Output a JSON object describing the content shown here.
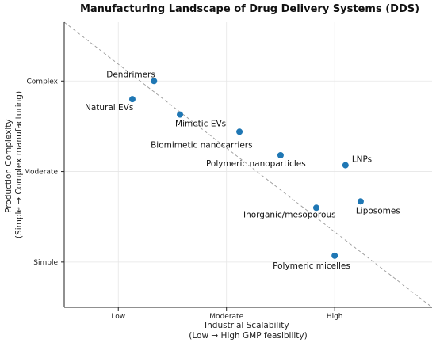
{
  "chart_data": {
    "type": "scatter",
    "title": "Manufacturing Landscape of Drug Delivery Systems (DDS)",
    "xlabel": [
      "Industrial Scalability",
      "(Low → High GMP feasibility)"
    ],
    "ylabel": [
      "Production Complexity",
      "(Simple → Complex manufacturing)"
    ],
    "xlim": [
      0.5,
      3.9
    ],
    "ylim": [
      0.5,
      3.65
    ],
    "x_ticks": [
      {
        "value": 1,
        "label": "Low"
      },
      {
        "value": 2,
        "label": "Moderate"
      },
      {
        "value": 3,
        "label": "High"
      }
    ],
    "y_ticks": [
      {
        "value": 1,
        "label": "Simple"
      },
      {
        "value": 2,
        "label": "Moderate"
      },
      {
        "value": 3,
        "label": "Complex"
      }
    ],
    "grid": true,
    "reference_line": {
      "style": "dashed",
      "from": [
        0.5,
        3.65
      ],
      "to": [
        3.9,
        0.5
      ]
    },
    "point_color": "#1f77b4",
    "points": [
      {
        "name": "Dendrimers",
        "x": 1.33,
        "y": 3.0,
        "label_dx": -60,
        "label_dy": -5
      },
      {
        "name": "Natural EVs",
        "x": 1.13,
        "y": 2.8,
        "label_dx": -60,
        "label_dy": 14
      },
      {
        "name": "Mimetic EVs",
        "x": 1.57,
        "y": 2.63,
        "label_dx": -6,
        "label_dy": 15
      },
      {
        "name": "Biomimetic nanocarriers",
        "x": 2.12,
        "y": 2.44,
        "label_dx": -112,
        "label_dy": 20
      },
      {
        "name": "Polymeric nanoparticles",
        "x": 2.5,
        "y": 2.18,
        "label_dx": -94,
        "label_dy": 14
      },
      {
        "name": "LNPs",
        "x": 3.1,
        "y": 2.07,
        "label_dx": 8,
        "label_dy": -4
      },
      {
        "name": "Liposomes",
        "x": 3.24,
        "y": 1.67,
        "label_dx": -6,
        "label_dy": 15
      },
      {
        "name": "Inorganic/mesoporous",
        "x": 2.83,
        "y": 1.6,
        "label_dx": -92,
        "label_dy": 12
      },
      {
        "name": "Polymeric micelles",
        "x": 3.0,
        "y": 1.07,
        "label_dx": -78,
        "label_dy": 16
      }
    ]
  }
}
